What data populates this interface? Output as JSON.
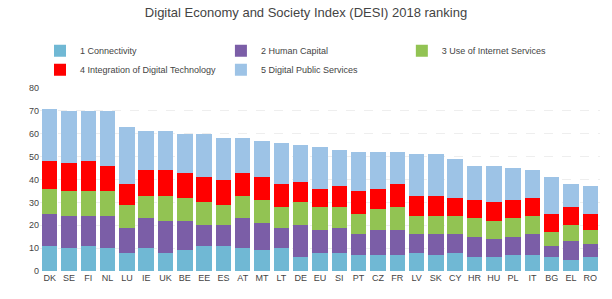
{
  "chart_data": {
    "type": "bar",
    "stacked": true,
    "title": "Digital Economy and Society Index (DESI) 2018 ranking",
    "categories": [
      "DK",
      "SE",
      "FI",
      "NL",
      "LU",
      "IE",
      "UK",
      "BE",
      "EE",
      "ES",
      "AT",
      "MT",
      "LT",
      "DE",
      "EU",
      "SI",
      "PT",
      "CZ",
      "FR",
      "LV",
      "SK",
      "CY",
      "HR",
      "HU",
      "PL",
      "IT",
      "BG",
      "EL",
      "RO"
    ],
    "series": [
      {
        "name": "1 Connectivity",
        "color": "#70b8d4",
        "values": [
          11,
          10,
          11,
          10,
          8,
          10,
          8,
          9,
          11,
          11,
          10,
          9,
          10,
          6,
          8,
          8,
          7,
          7,
          7,
          8,
          7,
          8,
          6,
          6,
          7,
          7,
          6,
          5,
          6
        ]
      },
      {
        "name": "2 Human Capital",
        "color": "#7b5ea7",
        "values": [
          14,
          14,
          13,
          14,
          11,
          13,
          14,
          13,
          9,
          9,
          13,
          12,
          9,
          14,
          10,
          11,
          9,
          11,
          11,
          8,
          9,
          8,
          9,
          8,
          8,
          9,
          5,
          8,
          6
        ]
      },
      {
        "name": "3 Use of Internet Services",
        "color": "#92c353",
        "values": [
          11,
          11,
          11,
          11,
          10,
          10,
          11,
          10,
          10,
          9,
          10,
          10,
          9,
          10,
          10,
          9,
          9,
          9,
          10,
          8,
          8,
          8,
          8,
          8,
          8,
          8,
          6,
          7,
          6
        ]
      },
      {
        "name": "4 Integration of Digital Technology",
        "color": "#ff0000",
        "values": [
          12,
          12,
          13,
          11,
          9,
          11,
          11,
          11,
          11,
          11,
          10,
          10,
          10,
          9,
          8,
          9,
          10,
          9,
          10,
          9,
          9,
          8,
          8,
          8,
          8,
          8,
          8,
          8,
          7
        ]
      },
      {
        "name": "5 Digital Public Services",
        "color": "#9dc3e6",
        "values": [
          23,
          23,
          22,
          24,
          25,
          17,
          17,
          17,
          19,
          18,
          15,
          16,
          18,
          16,
          18,
          16,
          17,
          16,
          14,
          18,
          18,
          17,
          15,
          16,
          14,
          12,
          16,
          10,
          12
        ]
      }
    ],
    "ylim": [
      0,
      80
    ],
    "yticks": [
      0,
      10,
      20,
      30,
      40,
      50,
      60,
      70,
      80
    ],
    "grid": true,
    "legend": "upper left"
  }
}
